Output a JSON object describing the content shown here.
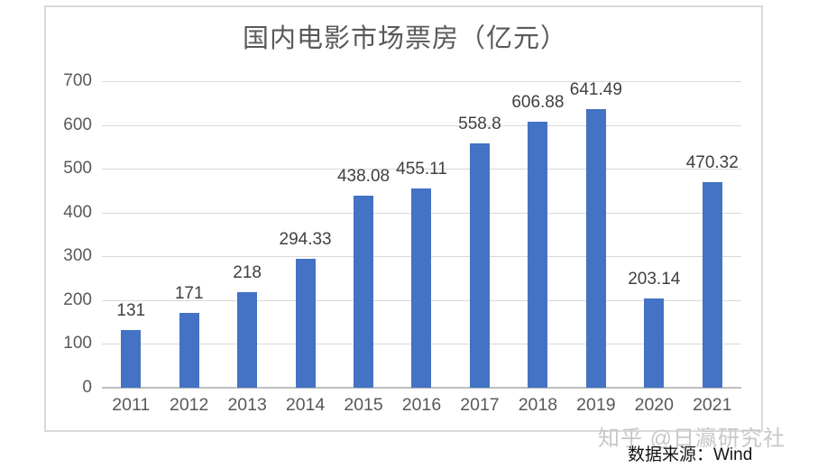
{
  "chart": {
    "title": "国内电影市场票房（亿元）",
    "watermark": "知乎 @日瀛研究社",
    "source_note": "数据来源：Wind",
    "colors": {
      "bar": "#4472C4",
      "gridline": "#D9D9D9",
      "axis_line": "#BFBFBF",
      "frame_border": "#D9D9D9",
      "text_gray": "#595959",
      "label_dark": "#404040",
      "watermark": "#C8C8C8",
      "source_text": "#141414",
      "background": "#FFFFFF"
    }
  },
  "chart_data": {
    "type": "bar",
    "title": "国内电影市场票房（亿元）",
    "categories": [
      "2011",
      "2012",
      "2013",
      "2014",
      "2015",
      "2016",
      "2017",
      "2018",
      "2019",
      "2020",
      "2021"
    ],
    "values": [
      131,
      171,
      218,
      294.33,
      438.08,
      455.11,
      558.8,
      606.88,
      641.49,
      203.14,
      470.32
    ],
    "value_labels": [
      "131",
      "171",
      "218",
      "294.33",
      "438.08",
      "455.11",
      "558.8",
      "606.88",
      "641.49",
      "203.14",
      "470.32"
    ],
    "xlabel": "",
    "ylabel": "",
    "ylim": [
      0,
      700
    ],
    "yticks": [
      0,
      100,
      200,
      300,
      400,
      500,
      600,
      700
    ],
    "grid": true,
    "legend": false,
    "bar_color": "#4472C4",
    "source": "数据来源：Wind"
  }
}
